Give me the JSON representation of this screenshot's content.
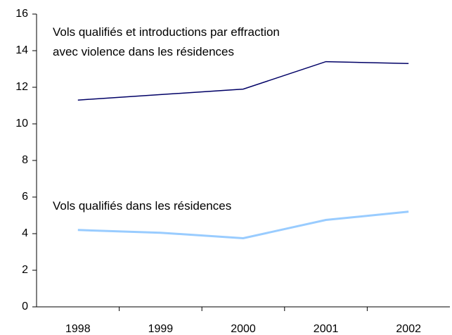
{
  "chart_data": {
    "type": "line",
    "categories": [
      "1998",
      "1999",
      "2000",
      "2001",
      "2002"
    ],
    "series": [
      {
        "name": "Vols qualifiés et introductions par effraction\navec violence dans les résidences",
        "color": "#000066",
        "values": [
          11.3,
          11.6,
          11.9,
          13.4,
          13.3
        ]
      },
      {
        "name": "Vols qualifiés dans les résidences",
        "color": "#99ccff",
        "values": [
          4.2,
          4.05,
          3.75,
          4.75,
          5.2
        ]
      }
    ],
    "ylim": [
      0,
      16
    ],
    "yticks": [
      0,
      2,
      4,
      6,
      8,
      10,
      12,
      14,
      16
    ],
    "grid": false
  }
}
